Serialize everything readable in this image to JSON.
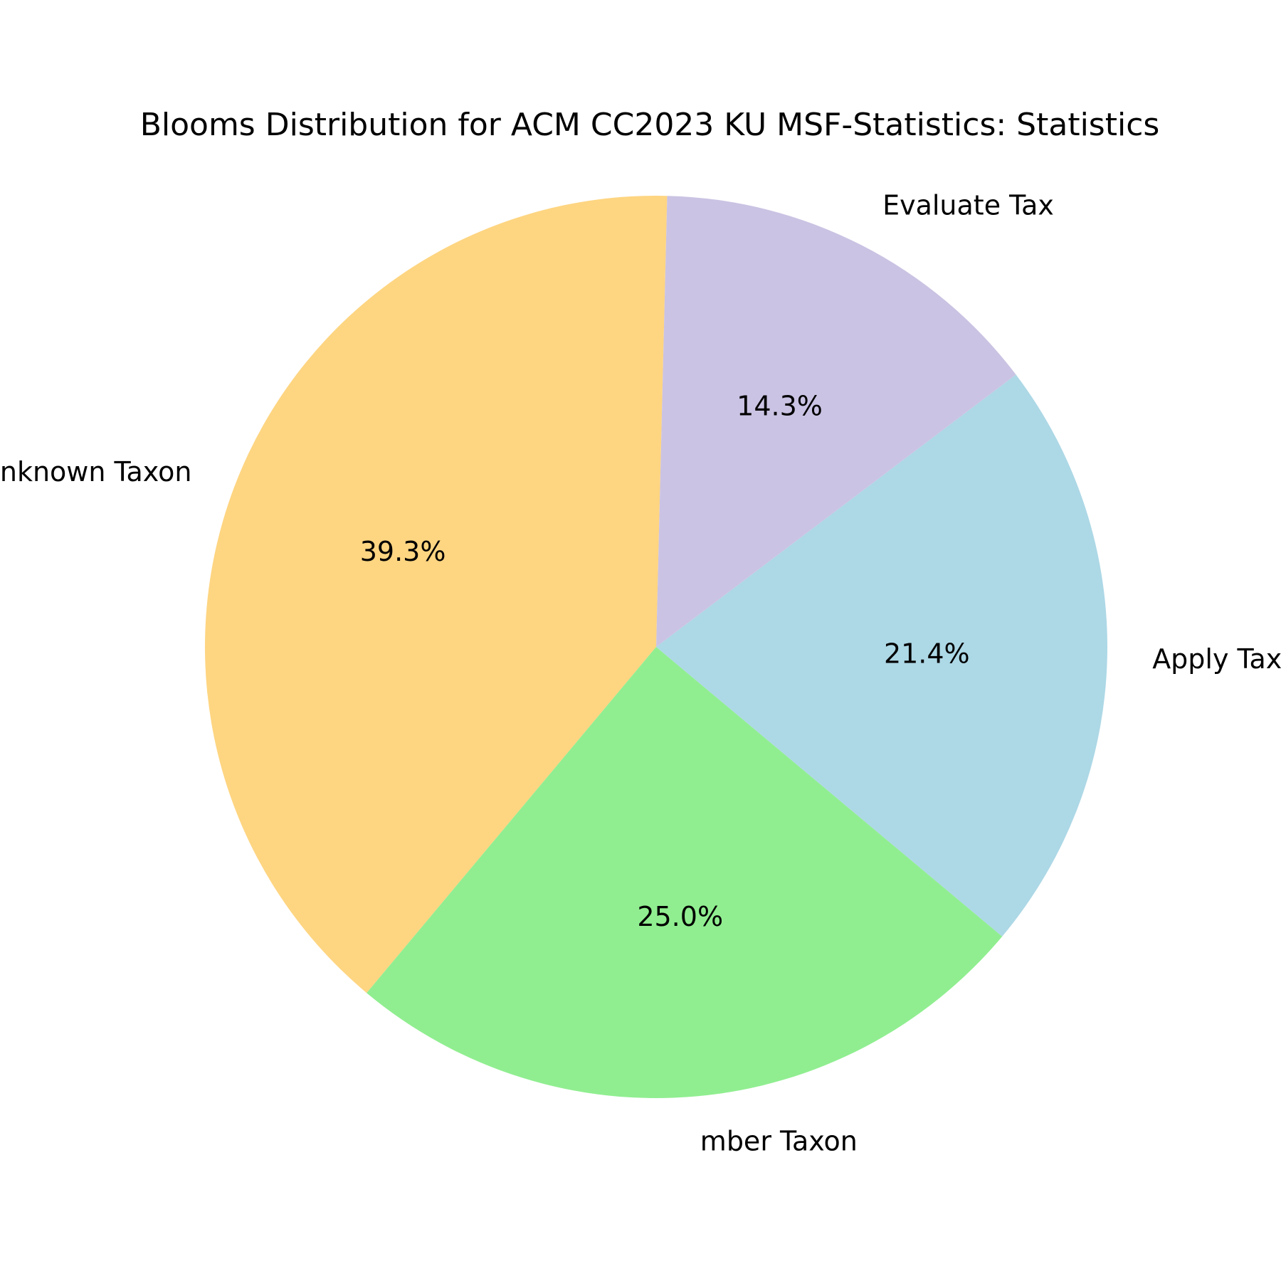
{
  "chart_data": {
    "type": "pie",
    "title": "Blooms Distribution for ACM CC2023 KU MSF-Statistics: Statistics",
    "slices": [
      {
        "label": "Unknown Taxon",
        "display_label": "Unknown Taxon",
        "value": 39.3,
        "pct_label": "39.3%",
        "color": "#fed581"
      },
      {
        "label": "Remember Taxon",
        "display_label": "mber Taxon",
        "value": 25.0,
        "pct_label": "25.0%",
        "color": "#90ee90"
      },
      {
        "label": "Apply Taxon",
        "display_label": "Apply Taxon",
        "value": 21.4,
        "pct_label": "21.4%",
        "color": "#add8e6"
      },
      {
        "label": "Evaluate Taxon",
        "display_label": "Evaluate Tax",
        "value": 14.3,
        "pct_label": "14.3%",
        "color": "#cbc3e3"
      }
    ],
    "start_angle_deg": 88.6,
    "direction": "counterclockwise",
    "legend": "none"
  }
}
